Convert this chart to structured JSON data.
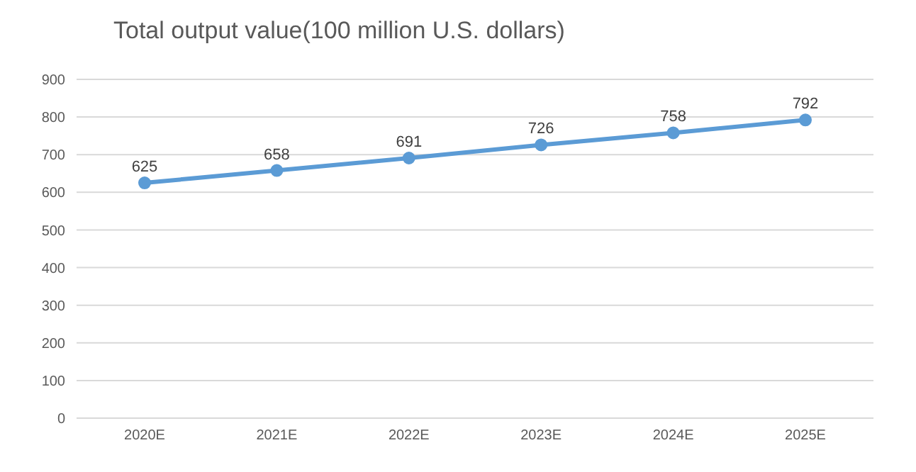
{
  "chart_data": {
    "type": "line",
    "title": "Total output value(100 million U.S. dollars)",
    "categories": [
      "2020E",
      "2021E",
      "2022E",
      "2023E",
      "2024E",
      "2025E"
    ],
    "series": [
      {
        "color": "#5b9bd5",
        "values": [
          625,
          658,
          691,
          726,
          758,
          792
        ]
      }
    ],
    "ylim": [
      0,
      900
    ],
    "yticks": [
      0,
      100,
      200,
      300,
      400,
      500,
      600,
      700,
      800,
      900
    ],
    "grid": "y",
    "marker": "circle",
    "line_style": "solid",
    "data_labels": true
  }
}
